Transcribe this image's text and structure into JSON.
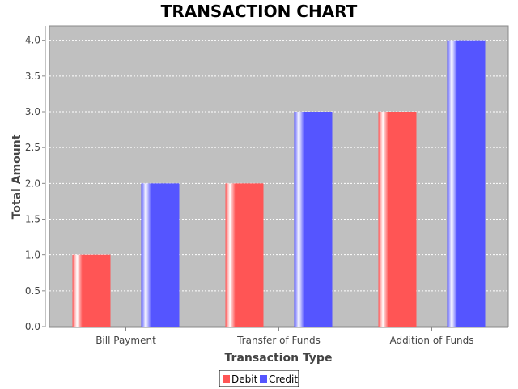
{
  "chart_data": {
    "type": "bar",
    "title": "TRANSACTION CHART",
    "xlabel": "Transaction Type",
    "ylabel": "Total Amount",
    "categories": [
      "Bill Payment",
      "Transfer of Funds",
      "Addition of Funds"
    ],
    "series": [
      {
        "name": "Debit",
        "values": [
          1.0,
          2.0,
          3.0
        ],
        "color": "#ff5555"
      },
      {
        "name": "Credit",
        "values": [
          2.0,
          3.0,
          4.0
        ],
        "color": "#5555ff"
      }
    ],
    "ylim": [
      0,
      4.2
    ],
    "yticks": [
      "0.0",
      "0.5",
      "1.0",
      "1.5",
      "2.0",
      "2.5",
      "3.0",
      "3.5",
      "4.0"
    ],
    "grid": true,
    "plot_background": "#c0c0c0",
    "legend_position": "bottom-center"
  }
}
